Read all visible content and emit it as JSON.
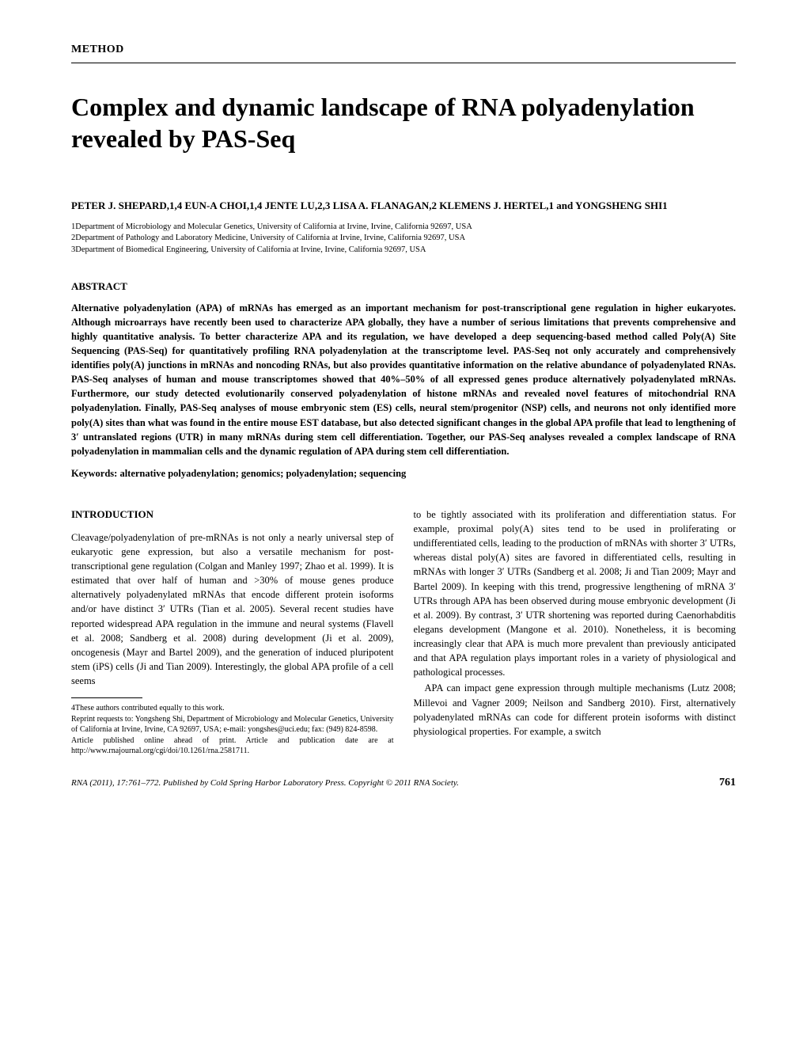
{
  "method_label": "METHOD",
  "title": "Complex and dynamic landscape of RNA polyadenylation revealed by PAS-Seq",
  "authors_line": "PETER J. SHEPARD,1,4 EUN-A CHOI,1,4 JENTE LU,2,3 LISA A. FLANAGAN,2 KLEMENS J. HERTEL,1 and YONGSHENG SHI1",
  "affiliations": {
    "a1": "1Department of Microbiology and Molecular Genetics, University of California at Irvine, Irvine, California 92697, USA",
    "a2": "2Department of Pathology and Laboratory Medicine, University of California at Irvine, Irvine, California 92697, USA",
    "a3": "3Department of Biomedical Engineering, University of California at Irvine, Irvine, California 92697, USA"
  },
  "abstract_label": "ABSTRACT",
  "abstract_text": "Alternative polyadenylation (APA) of mRNAs has emerged as an important mechanism for post-transcriptional gene regulation in higher eukaryotes. Although microarrays have recently been used to characterize APA globally, they have a number of serious limitations that prevents comprehensive and highly quantitative analysis. To better characterize APA and its regulation, we have developed a deep sequencing-based method called Poly(A) Site Sequencing (PAS-Seq) for quantitatively profiling RNA polyadenylation at the transcriptome level. PAS-Seq not only accurately and comprehensively identifies poly(A) junctions in mRNAs and noncoding RNAs, but also provides quantitative information on the relative abundance of polyadenylated RNAs. PAS-Seq analyses of human and mouse transcriptomes showed that 40%–50% of all expressed genes produce alternatively polyadenylated mRNAs. Furthermore, our study detected evolutionarily conserved polyadenylation of histone mRNAs and revealed novel features of mitochondrial RNA polyadenylation. Finally, PAS-Seq analyses of mouse embryonic stem (ES) cells, neural stem/progenitor (NSP) cells, and neurons not only identified more poly(A) sites than what was found in the entire mouse EST database, but also detected significant changes in the global APA profile that lead to lengthening of 3′ untranslated regions (UTR) in many mRNAs during stem cell differentiation. Together, our PAS-Seq analyses revealed a complex landscape of RNA polyadenylation in mammalian cells and the dynamic regulation of APA during stem cell differentiation.",
  "keywords_label": "Keywords:",
  "keywords_text": "alternative polyadenylation; genomics; polyadenylation; sequencing",
  "intro_heading": "INTRODUCTION",
  "col1_p1": "Cleavage/polyadenylation of pre-mRNAs is not only a nearly universal step of eukaryotic gene expression, but also a versatile mechanism for post-transcriptional gene regulation (Colgan and Manley 1997; Zhao et al. 1999). It is estimated that over half of human and >30% of mouse genes produce alternatively polyadenylated mRNAs that encode different protein isoforms and/or have distinct 3′ UTRs (Tian et al. 2005). Several recent studies have reported widespread APA regulation in the immune and neural systems (Flavell et al. 2008; Sandberg et al. 2008) during development (Ji et al. 2009), oncogenesis (Mayr and Bartel 2009), and the generation of induced pluripotent stem (iPS) cells (Ji and Tian 2009). Interestingly, the global APA profile of a cell seems",
  "col2_p1": "to be tightly associated with its proliferation and differentiation status. For example, proximal poly(A) sites tend to be used in proliferating or undifferentiated cells, leading to the production of mRNAs with shorter 3′ UTRs, whereas distal poly(A) sites are favored in differentiated cells, resulting in mRNAs with longer 3′ UTRs (Sandberg et al. 2008; Ji and Tian 2009; Mayr and Bartel 2009). In keeping with this trend, progressive lengthening of mRNA 3′ UTRs through APA has been observed during mouse embryonic development (Ji et al. 2009). By contrast, 3′ UTR shortening was reported during Caenorhabditis elegans development (Mangone et al. 2010). Nonetheless, it is becoming increasingly clear that APA is much more prevalent than previously anticipated and that APA regulation plays important roles in a variety of physiological and pathological processes.",
  "col2_p2": "APA can impact gene expression through multiple mechanisms (Lutz 2008; Millevoi and Vagner 2009; Neilson and Sandberg 2010). First, alternatively polyadenylated mRNAs can code for different protein isoforms with distinct physiological properties. For example, a switch",
  "footnotes": {
    "f1": "4These authors contributed equally to this work.",
    "f2": "Reprint requests to: Yongsheng Shi, Department of Microbiology and Molecular Genetics, University of California at Irvine, Irvine, CA 92697, USA; e-mail: yongshes@uci.edu; fax: (949) 824-8598.",
    "f3": "Article published online ahead of print. Article and publication date are at http://www.rnajournal.org/cgi/doi/10.1261/rna.2581711."
  },
  "footer": {
    "journal": "RNA (2011), 17:761–772. Published by Cold Spring Harbor Laboratory Press. Copyright © 2011 RNA Society.",
    "page": "761"
  }
}
